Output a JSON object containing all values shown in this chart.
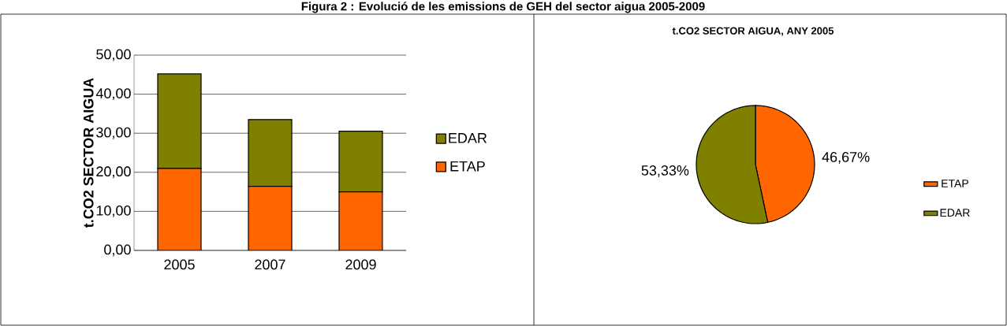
{
  "chart_data": [
    {
      "type": "bar",
      "title": "Figura 2 : Evolució de les emissions de GEH del sector aigua 2005-2009",
      "ylabel": "t.CO2 SECTOR AIGUA",
      "categories": [
        "2005",
        "2007",
        "2009"
      ],
      "stacked": true,
      "series": [
        {
          "name": "ETAP",
          "color": "#ff6600",
          "values": [
            21.0,
            16.4,
            15.0
          ]
        },
        {
          "name": "EDAR",
          "color": "#808000",
          "values": [
            24.2,
            17.1,
            15.5
          ]
        }
      ],
      "ylim": [
        0,
        50
      ],
      "yticks": [
        {
          "value": 0,
          "label": "0,00"
        },
        {
          "value": 10,
          "label": "10,00"
        },
        {
          "value": 20,
          "label": "20,00"
        },
        {
          "value": 30,
          "label": "30,00"
        },
        {
          "value": 40,
          "label": "40,00"
        },
        {
          "value": 50,
          "label": "50,00"
        }
      ],
      "grid": "y",
      "legend": "right"
    },
    {
      "type": "pie",
      "title": "t.CO2 SECTOR AIGUA, ANY 2005",
      "categories": [
        "ETAP",
        "EDAR"
      ],
      "values": [
        46.67,
        53.33
      ],
      "colors": [
        "#ff6600",
        "#808000"
      ],
      "value_labels": [
        "46,67%",
        "53,33%"
      ],
      "legend": "right"
    }
  ]
}
